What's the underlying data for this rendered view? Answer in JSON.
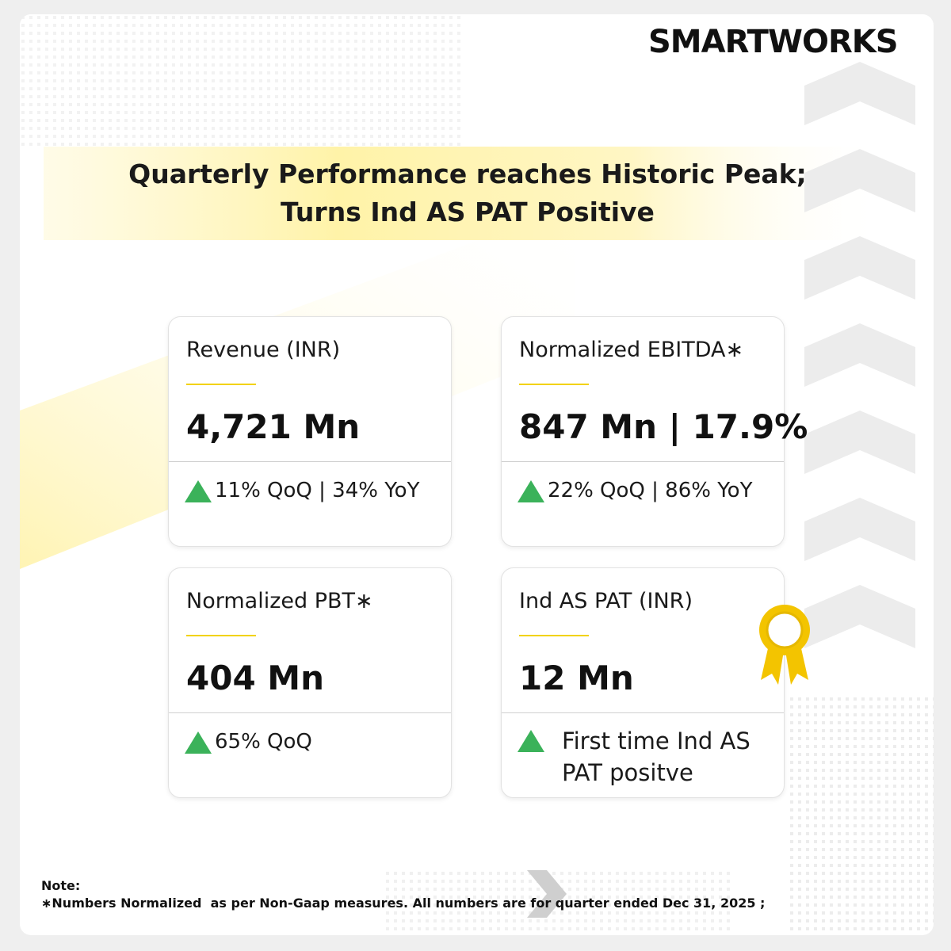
{
  "brand": "SMARTWORKS",
  "title": [
    "Quarterly Performance reaches Historic Peak;",
    "Turns Ind AS PAT Positive"
  ],
  "cards": [
    {
      "label": "Revenue (INR)",
      "value": "4,721 Mn",
      "change": "11% QoQ | 34% YoY"
    },
    {
      "label": "Normalized EBITDA∗",
      "value": "847 Mn | 17.9%",
      "change": "22% QoQ | 86% YoY"
    },
    {
      "label": "Normalized PBT∗",
      "value": "404 Mn",
      "change": "65% QoQ"
    },
    {
      "label": "Ind AS PAT (INR)",
      "value": "12 Mn",
      "change": "First time Ind AS PAT positve"
    }
  ],
  "note": {
    "heading": "Note:",
    "text": "∗Numbers Normalized  as per Non-Gaap measures. All numbers are for quarter ended Dec 31, 2025 ;"
  }
}
